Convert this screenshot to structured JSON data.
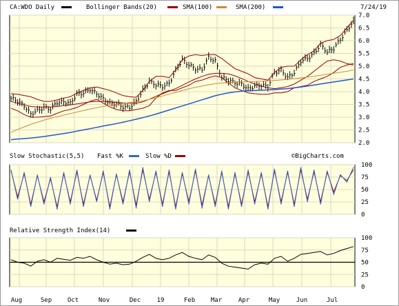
{
  "chart_data": [
    {
      "type": "line",
      "panel": "price",
      "symbol_label": "CA:WDO Daily",
      "date_label": "7/24/19",
      "legend": [
        {
          "label": "CA:WDO Daily",
          "color": "#000000"
        },
        {
          "label": "Bollinger Bands(20)",
          "color": "#000000"
        },
        {
          "label": "SMA(100)",
          "color": "#990000"
        },
        {
          "label": "SMA(200)",
          "color": "#cc8833"
        }
      ],
      "ylim": [
        2.0,
        7.0
      ],
      "y_ticks": [
        "7.0",
        "6.5",
        "6.0",
        "5.5",
        "5.0",
        "4.5",
        "4.0",
        "3.5",
        "3.0",
        "2.5",
        "2.0"
      ],
      "series": [
        {
          "name": "CA:WDO Daily",
          "values": [
            3.75,
            3.62,
            3.45,
            3.12,
            3.25,
            3.38,
            3.32,
            3.58,
            3.6,
            3.55,
            3.9,
            3.95,
            4.1,
            3.92,
            3.72,
            3.55,
            3.52,
            3.4,
            3.38,
            3.62,
            4.05,
            4.4,
            4.28,
            4.2,
            4.32,
            4.85,
            5.25,
            5.05,
            4.9,
            4.85,
            5.35,
            5.2,
            4.55,
            4.45,
            4.35,
            4.3,
            4.1,
            4.22,
            4.25,
            4.2,
            4.75,
            4.85,
            4.55,
            4.75,
            5.2,
            5.3,
            5.5,
            5.85,
            5.55,
            5.7,
            6.05,
            6.4,
            6.8
          ]
        },
        {
          "name": "Upper Bollinger Band",
          "values": [
            3.92,
            3.9,
            3.85,
            3.8,
            3.7,
            3.62,
            3.62,
            3.68,
            3.75,
            3.8,
            3.95,
            4.05,
            4.15,
            4.18,
            4.12,
            4.05,
            3.95,
            3.85,
            3.8,
            3.78,
            4.05,
            4.4,
            4.6,
            4.6,
            4.55,
            4.85,
            5.25,
            5.4,
            5.45,
            5.42,
            5.45,
            5.45,
            5.3,
            5.1,
            4.9,
            4.8,
            4.7,
            4.55,
            4.5,
            4.45,
            4.75,
            4.95,
            5.0,
            5.0,
            5.25,
            5.45,
            5.6,
            5.9,
            6.0,
            6.05,
            6.2,
            6.5,
            6.8
          ]
        },
        {
          "name": "Lower Bollinger Band",
          "values": [
            3.35,
            3.25,
            3.1,
            3.0,
            3.0,
            3.02,
            3.05,
            3.15,
            3.25,
            3.3,
            3.38,
            3.5,
            3.62,
            3.7,
            3.55,
            3.4,
            3.3,
            3.25,
            3.25,
            3.3,
            3.35,
            3.45,
            3.75,
            3.95,
            4.05,
            4.05,
            4.15,
            4.25,
            4.4,
            4.45,
            4.55,
            4.62,
            4.55,
            4.35,
            4.15,
            4.05,
            3.95,
            3.92,
            3.9,
            3.9,
            3.95,
            3.95,
            4.0,
            4.15,
            4.2,
            4.25,
            4.4,
            4.5,
            4.6,
            4.75,
            4.95,
            5.05,
            5.1
          ]
        },
        {
          "name": "SMA(100)",
          "values": [
            3.62,
            3.55,
            3.48,
            3.42,
            3.4,
            3.4,
            3.4,
            3.42,
            3.45,
            3.48,
            3.52,
            3.56,
            3.6,
            3.62,
            3.62,
            3.6,
            3.58,
            3.56,
            3.55,
            3.55,
            3.6,
            3.7,
            3.82,
            3.92,
            4.02,
            4.12,
            4.25,
            4.38,
            4.5,
            4.6,
            4.68,
            4.72,
            4.72,
            4.7,
            4.62,
            4.52,
            4.4,
            4.3,
            4.22,
            4.15,
            4.12,
            4.15,
            4.2,
            4.3,
            4.45,
            4.6,
            4.8,
            5.0,
            5.2,
            5.25,
            5.2,
            5.1,
            5.05
          ]
        },
        {
          "name": "SMA(200)",
          "values": [
            2.4,
            2.52,
            2.62,
            2.72,
            2.8,
            2.88,
            2.96,
            3.02,
            3.08,
            3.14,
            3.2,
            3.26,
            3.32,
            3.37,
            3.42,
            3.46,
            3.5,
            3.54,
            3.57,
            3.6,
            3.64,
            3.7,
            3.76,
            3.83,
            3.9,
            3.97,
            4.04,
            4.11,
            4.17,
            4.22,
            4.27,
            4.31,
            4.34,
            4.36,
            4.37,
            4.38,
            4.39,
            4.4,
            4.41,
            4.42,
            4.44,
            4.46,
            4.48,
            4.51,
            4.54,
            4.57,
            4.6,
            4.64,
            4.68,
            4.72,
            4.76,
            4.8,
            4.85
          ]
        },
        {
          "name": "Trend line (blue)",
          "values": [
            2.12,
            2.14,
            2.16,
            2.18,
            2.21,
            2.24,
            2.28,
            2.32,
            2.36,
            2.4,
            2.45,
            2.5,
            2.55,
            2.6,
            2.65,
            2.7,
            2.75,
            2.8,
            2.86,
            2.92,
            2.98,
            3.05,
            3.12,
            3.2,
            3.28,
            3.36,
            3.44,
            3.52,
            3.6,
            3.68,
            3.76,
            3.84,
            3.9,
            3.95,
            3.99,
            4.02,
            4.04,
            4.05,
            4.06,
            4.07,
            4.08,
            4.1,
            4.12,
            4.15,
            4.18,
            4.22,
            4.26,
            4.3,
            4.34,
            4.38,
            4.42,
            4.46,
            4.5
          ]
        }
      ],
      "grid": true
    },
    {
      "type": "line",
      "panel": "stochastic",
      "title": "Slow Stochastic(5,5)",
      "legend": [
        {
          "label": "Fast %K",
          "color": "#3366cc"
        },
        {
          "label": "Slow %D",
          "color": "#990000"
        }
      ],
      "watermark": "©BigCharts.com",
      "ylim": [
        0,
        100
      ],
      "y_ticks": [
        "100",
        "75",
        "50",
        "25",
        "0"
      ],
      "series": [
        {
          "name": "Fast %K",
          "values": [
            90,
            30,
            85,
            15,
            80,
            20,
            75,
            10,
            85,
            20,
            90,
            15,
            80,
            25,
            88,
            10,
            82,
            20,
            90,
            12,
            95,
            25,
            88,
            15,
            90,
            10,
            85,
            20,
            92,
            12,
            80,
            15,
            88,
            10,
            85,
            15,
            90,
            20,
            85,
            10,
            92,
            20,
            88,
            15,
            95,
            25,
            90,
            20,
            88,
            40,
            80,
            65,
            95
          ]
        },
        {
          "name": "Slow %D",
          "values": [
            88,
            35,
            82,
            20,
            78,
            25,
            72,
            15,
            82,
            25,
            86,
            20,
            78,
            28,
            85,
            15,
            80,
            25,
            86,
            18,
            90,
            30,
            85,
            20,
            86,
            15,
            82,
            25,
            88,
            18,
            78,
            20,
            85,
            15,
            82,
            20,
            86,
            25,
            82,
            15,
            88,
            25,
            85,
            20,
            90,
            30,
            86,
            25,
            85,
            45,
            78,
            68,
            90
          ]
        }
      ],
      "grid": true
    },
    {
      "type": "line",
      "panel": "rsi",
      "title": "Relative Strength Index(14)",
      "legend": [
        {
          "label": "Relative Strength Index(14)",
          "color": "#000000"
        }
      ],
      "ylim": [
        0,
        100
      ],
      "y_ticks": [
        "100",
        "75",
        "50",
        "25",
        "0"
      ],
      "reference_line": 50,
      "series": [
        {
          "name": "RSI(14)",
          "values": [
            55,
            50,
            48,
            42,
            52,
            55,
            50,
            58,
            56,
            54,
            60,
            58,
            62,
            55,
            50,
            46,
            48,
            45,
            46,
            52,
            60,
            66,
            58,
            55,
            58,
            65,
            70,
            62,
            58,
            55,
            65,
            60,
            48,
            42,
            40,
            38,
            36,
            45,
            48,
            46,
            58,
            62,
            52,
            58,
            66,
            68,
            70,
            72,
            65,
            68,
            74,
            78,
            82
          ]
        }
      ],
      "grid": true
    }
  ],
  "x_axis": {
    "labels": [
      "Aug",
      "Sep",
      "Oct",
      "Nov",
      "Dec",
      "19",
      "Feb",
      "Mar",
      "Apr",
      "May",
      "Jun",
      "Jul"
    ]
  }
}
